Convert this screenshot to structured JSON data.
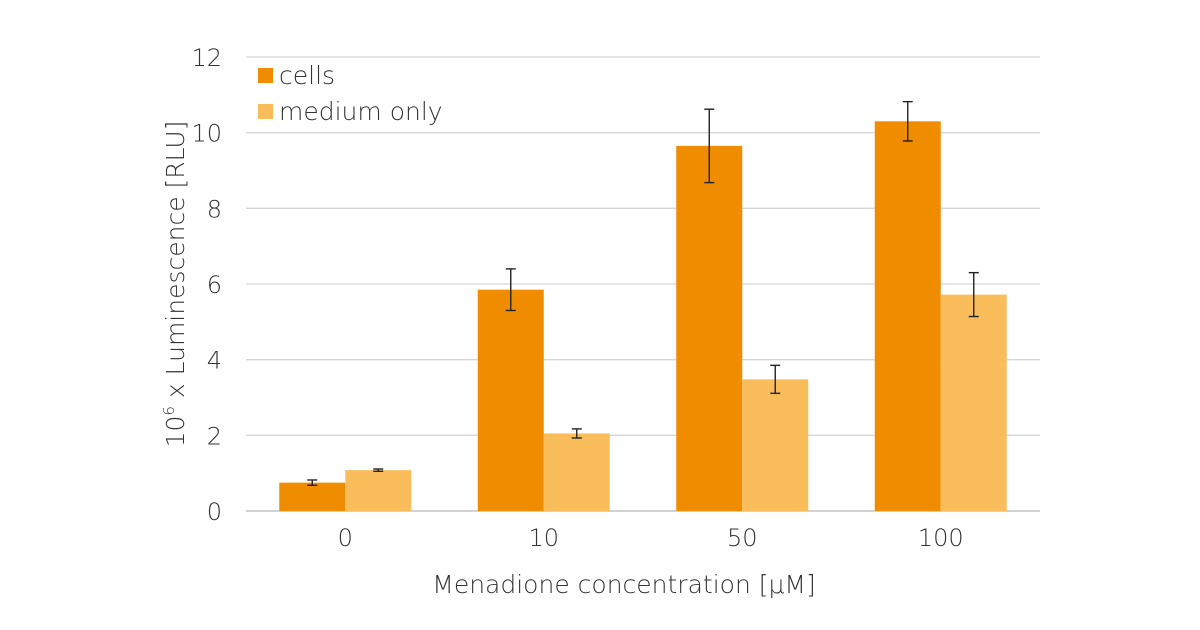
{
  "chart_data": {
    "type": "bar",
    "title": "",
    "xlabel": "Menadione concentration [μM]",
    "ylabel_base": "10",
    "ylabel_exp": "6",
    "ylabel_rest": " x Luminescence [RLU]",
    "categories": [
      "0",
      "10",
      "50",
      "100"
    ],
    "ylim": [
      0,
      12
    ],
    "yticks": [
      "0",
      "2",
      "4",
      "6",
      "8",
      "10",
      "12"
    ],
    "grid": true,
    "legend_position": "top-left",
    "series": [
      {
        "name": "cells",
        "color": "#f08c00",
        "values": [
          0.75,
          5.85,
          9.65,
          10.3
        ],
        "errors": [
          0.07,
          0.55,
          0.97,
          0.52
        ]
      },
      {
        "name": "medium only",
        "color": "#f9bd5c",
        "values": [
          1.08,
          2.05,
          3.48,
          5.72
        ],
        "errors": [
          0.03,
          0.12,
          0.37,
          0.58
        ]
      }
    ]
  }
}
